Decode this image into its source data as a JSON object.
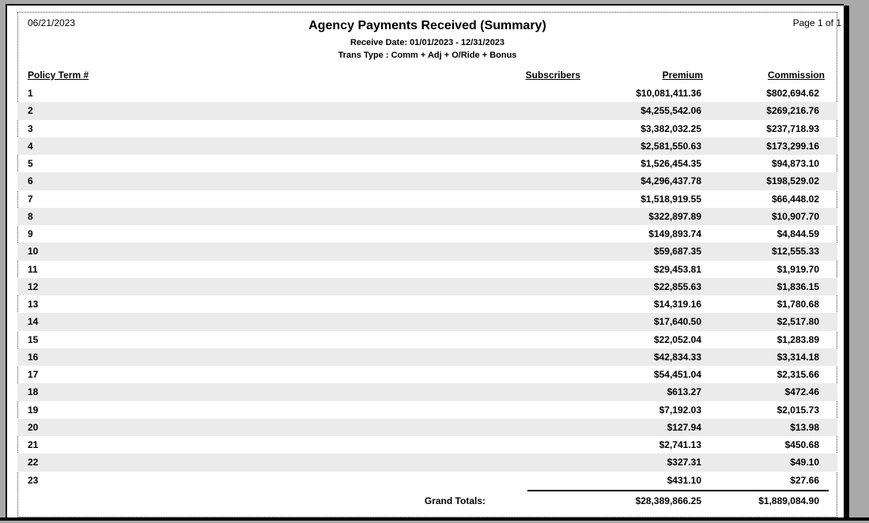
{
  "page": {
    "date": "06/21/2023",
    "page_indicator": "Page 1 of 1",
    "title": "Agency Payments Received (Summary)",
    "subtitle_receive_date": "Receive Date: 01/01/2023 - 12/31/2023",
    "subtitle_trans_type": "Trans Type : Comm + Adj + O/Ride + Bonus"
  },
  "table": {
    "columns": [
      "Policy Term #",
      "Subscribers",
      "Premium",
      "Commission"
    ],
    "rows": [
      {
        "term": "1",
        "subscribers": "",
        "premium": "$10,081,411.36",
        "commission": "$802,694.62"
      },
      {
        "term": "2",
        "subscribers": "",
        "premium": "$4,255,542.06",
        "commission": "$269,216.76"
      },
      {
        "term": "3",
        "subscribers": "",
        "premium": "$3,382,032.25",
        "commission": "$237,718.93"
      },
      {
        "term": "4",
        "subscribers": "",
        "premium": "$2,581,550.63",
        "commission": "$173,299.16"
      },
      {
        "term": "5",
        "subscribers": "",
        "premium": "$1,526,454.35",
        "commission": "$94,873.10"
      },
      {
        "term": "6",
        "subscribers": "",
        "premium": "$4,296,437.78",
        "commission": "$198,529.02"
      },
      {
        "term": "7",
        "subscribers": "",
        "premium": "$1,518,919.55",
        "commission": "$66,448.02"
      },
      {
        "term": "8",
        "subscribers": "",
        "premium": "$322,897.89",
        "commission": "$10,907.70"
      },
      {
        "term": "9",
        "subscribers": "",
        "premium": "$149,893.74",
        "commission": "$4,844.59"
      },
      {
        "term": "10",
        "subscribers": "",
        "premium": "$59,687.35",
        "commission": "$12,555.33"
      },
      {
        "term": "11",
        "subscribers": "",
        "premium": "$29,453.81",
        "commission": "$1,919.70"
      },
      {
        "term": "12",
        "subscribers": "",
        "premium": "$22,855.63",
        "commission": "$1,836.15"
      },
      {
        "term": "13",
        "subscribers": "",
        "premium": "$14,319.16",
        "commission": "$1,780.68"
      },
      {
        "term": "14",
        "subscribers": "",
        "premium": "$17,640.50",
        "commission": "$2,517.80"
      },
      {
        "term": "15",
        "subscribers": "",
        "premium": "$22,052.04",
        "commission": "$1,283.89"
      },
      {
        "term": "16",
        "subscribers": "",
        "premium": "$42,834.33",
        "commission": "$3,314.18"
      },
      {
        "term": "17",
        "subscribers": "",
        "premium": "$54,451.04",
        "commission": "$2,315.66"
      },
      {
        "term": "18",
        "subscribers": "",
        "premium": "$613.27",
        "commission": "$472.46"
      },
      {
        "term": "19",
        "subscribers": "",
        "premium": "$7,192.03",
        "commission": "$2,015.73"
      },
      {
        "term": "20",
        "subscribers": "",
        "premium": "$127.94",
        "commission": "$13.98"
      },
      {
        "term": "21",
        "subscribers": "",
        "premium": "$2,741.13",
        "commission": "$450.68"
      },
      {
        "term": "22",
        "subscribers": "",
        "premium": "$327.31",
        "commission": "$49.10"
      },
      {
        "term": "23",
        "subscribers": "",
        "premium": "$431.10",
        "commission": "$27.66"
      }
    ],
    "grand_totals": {
      "label": "Grand Totals:",
      "subscribers": "",
      "premium": "$28,389,866.25",
      "commission": "$1,889,084.90"
    }
  },
  "colors": {
    "background": "#a9a9a9",
    "page": "#ffffff",
    "stripe": "#ebebeb"
  }
}
